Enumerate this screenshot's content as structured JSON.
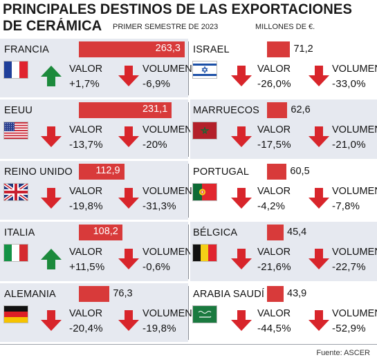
{
  "header": {
    "title_line1": "PRINCIPALES DESTINOS  DE LAS EXPORTACIONES",
    "title_line2": "DE CERÁMICA",
    "period": "PRIMER SEMESTRE DE 2023",
    "units": "MILLONES DE €."
  },
  "source": "Fuente: ASCER",
  "labels": {
    "valor": "VALOR",
    "volumen": "VOLUMEN"
  },
  "colors": {
    "bar": "#d83a3a",
    "up": "#1c8a3c",
    "down": "#d8252b",
    "row_bg": "#e6e9f0"
  },
  "chart_data": {
    "type": "bar",
    "title": "PRINCIPALES DESTINOS  DE LAS EXPORTACIONES DE CERÁMICA",
    "subtitle": "PRIMER SEMESTRE DE 2023",
    "unit": "MILLONES DE €.",
    "countries": [
      {
        "name": "FRANCIA",
        "value": "263,3",
        "v": 263.3,
        "flag": "france-flag",
        "valor": "+1,7%",
        "valor_dir": "up",
        "volumen": "-6,9%",
        "volumen_dir": "down"
      },
      {
        "name": "EEUU",
        "value": "231,1",
        "v": 231.1,
        "flag": "usa-flag",
        "valor": "-13,7%",
        "valor_dir": "down",
        "volumen": "-20%",
        "volumen_dir": "down"
      },
      {
        "name": "REINO UNIDO",
        "value": "112,9",
        "v": 112.9,
        "flag": "uk-flag",
        "valor": "-19,8%",
        "valor_dir": "down",
        "volumen": "-31,3%",
        "volumen_dir": "down"
      },
      {
        "name": "ITALIA",
        "value": "108,2",
        "v": 108.2,
        "flag": "italy-flag",
        "valor": "+11,5%",
        "valor_dir": "up",
        "volumen": "-0,6%",
        "volumen_dir": "down"
      },
      {
        "name": "ALEMANIA",
        "value": "76,3",
        "v": 76.3,
        "flag": "germany-flag",
        "valor": "-20,4%",
        "valor_dir": "down",
        "volumen": "-19,8%",
        "volumen_dir": "down"
      },
      {
        "name": "ISRAEL",
        "value": "71,2",
        "v": 71.2,
        "flag": "israel-flag",
        "valor": "-26,0%",
        "valor_dir": "down",
        "volumen": "-33,0%",
        "volumen_dir": "down"
      },
      {
        "name": "MARRUECOS",
        "value": "62,6",
        "v": 62.6,
        "flag": "morocco-flag",
        "valor": "-17,5%",
        "valor_dir": "down",
        "volumen": "-21,0%",
        "volumen_dir": "down"
      },
      {
        "name": "PORTUGAL",
        "value": "60,5",
        "v": 60.5,
        "flag": "portugal-flag",
        "valor": "-4,2%",
        "valor_dir": "down",
        "volumen": "-7,8%",
        "volumen_dir": "down"
      },
      {
        "name": "BÉLGICA",
        "value": "45,4",
        "v": 45.4,
        "flag": "belgium-flag",
        "valor": "-21,6%",
        "valor_dir": "down",
        "volumen": "-22,7%",
        "volumen_dir": "down"
      },
      {
        "name": "ARABIA SAUDÍ",
        "value": "43,9",
        "v": 43.9,
        "flag": "saudi-arabia-flag",
        "valor": "-44,5%",
        "valor_dir": "down",
        "volumen": "-52,9%",
        "volumen_dir": "down"
      }
    ]
  }
}
